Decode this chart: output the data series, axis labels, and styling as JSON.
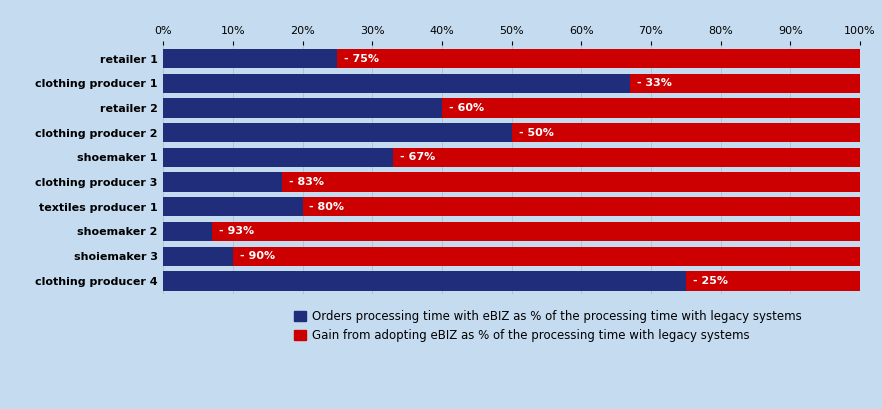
{
  "categories": [
    "retailer 1",
    "clothing producer 1",
    "retailer 2",
    "clothing producer 2",
    "shoemaker 1",
    "clothing producer 3",
    "textiles producer 1",
    "shoemaker 2",
    "shoiemaker 3",
    "clothing producer 4"
  ],
  "blue_values": [
    25,
    67,
    40,
    50,
    33,
    17,
    20,
    7,
    10,
    75
  ],
  "red_values": [
    75,
    33,
    60,
    50,
    67,
    83,
    80,
    93,
    90,
    25
  ],
  "gain_labels": [
    "- 75%",
    "- 33%",
    "- 60%",
    "- 50%",
    "- 67%",
    "- 83%",
    "- 80%",
    "- 93%",
    "- 90%",
    "- 25%"
  ],
  "blue_color": "#1F2D7B",
  "red_color": "#CC0000",
  "background_color": "#C5DCF0",
  "tick_labels": [
    "0%",
    "10%",
    "20%",
    "30%",
    "40%",
    "50%",
    "60%",
    "70%",
    "80%",
    "90%",
    "100%"
  ],
  "legend_blue": "Orders processing time with eBIZ as % of the processing time with legacy systems",
  "legend_red": "Gain from adopting eBIZ as % of the processing time with legacy systems",
  "bar_height": 0.78,
  "label_fontsize": 8.0,
  "tick_fontsize": 8.0,
  "legend_fontsize": 8.5,
  "ytick_fontsize": 8.0
}
